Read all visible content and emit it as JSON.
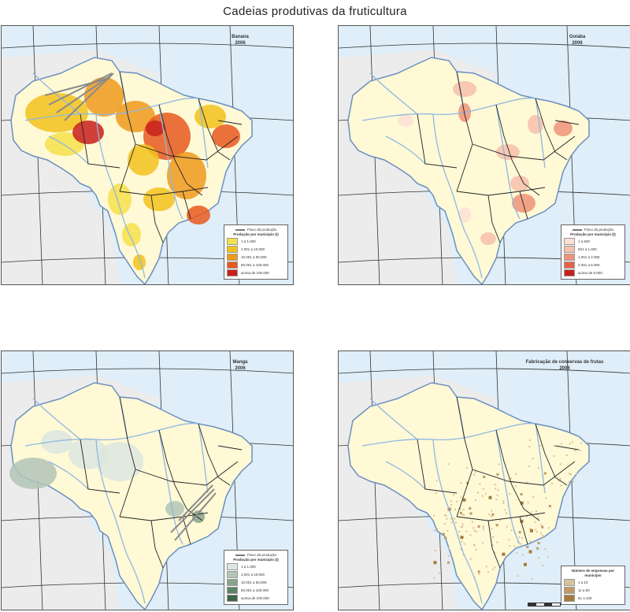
{
  "title": "Cadeias produtivas da fruticultura",
  "colors": {
    "ocean": "#dfeef8",
    "neighbor": "#ececec",
    "land": "#fff9d6",
    "river": "#8fb8e0",
    "border": "#222222",
    "grid": "#333333"
  },
  "maps": [
    {
      "title": "Banana",
      "year": "2006",
      "legend": {
        "flow_label": "Fluxo da produção",
        "header": "Produção por município (t)",
        "classes": [
          "1 a 1.000",
          "1.001 a 10.000",
          "10.001 a 50.000",
          "50.001 a 100.000",
          "acima de 100.000"
        ],
        "colors": [
          "#f6e14a",
          "#f2c21c",
          "#ef9a1d",
          "#e8591e",
          "#c8201c"
        ]
      }
    },
    {
      "title": "Goiaba",
      "year": "2006",
      "legend": {
        "flow_label": "Fluxo da produção",
        "header": "Produção por município (t)",
        "classes": [
          "1 a 500",
          "501 a 1.000",
          "1.001 a 2.000",
          "2.001 a 5.000",
          "acima de 5.000"
        ],
        "colors": [
          "#fbe0d6",
          "#f7c0ac",
          "#f09479",
          "#e5624b",
          "#c8201c"
        ]
      }
    },
    {
      "title": "Manga",
      "year": "2006",
      "legend": {
        "flow_label": "Fluxo da produção",
        "header": "Produção por município (t)",
        "classes": [
          "1 a 1.000",
          "1.001 a 10.000",
          "10.001 a 50.000",
          "50.001 a 100.000",
          "acima de 100.000"
        ],
        "colors": [
          "#dde6df",
          "#b3c6b6",
          "#86a58c",
          "#5c8464",
          "#3c6646"
        ]
      }
    },
    {
      "title": "Fabricação de conservas de frutas",
      "year": "2006",
      "legend": {
        "header": "Número de empresas por município",
        "classes": [
          "1 a 10",
          "11 a 50",
          "51 a 100"
        ],
        "colors": [
          "#d9c29b",
          "#c19a63",
          "#a67a3c"
        ]
      }
    }
  ]
}
